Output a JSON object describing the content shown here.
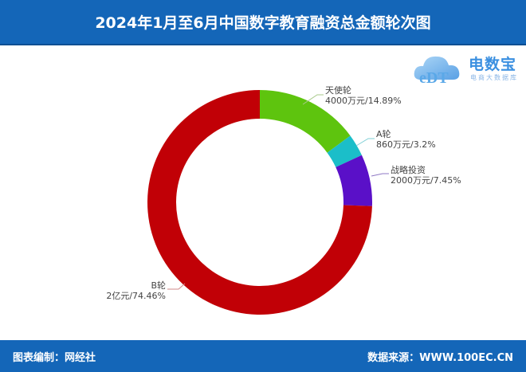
{
  "header": {
    "title": "2024年1月至6月中国数字教育融资总金额轮次图"
  },
  "logo": {
    "brand": "电数宝",
    "subtitle": "电商大数据库",
    "mark": "eDT"
  },
  "footer": {
    "left": "图表编制：网经社",
    "right": "数据来源：WWW.100EC.CN"
  },
  "colors": {
    "header_bg": "#1466b8",
    "angel": "#5ec40e",
    "a_round": "#1bbec9",
    "strategic": "#5a10c8",
    "b_round": "#c10006"
  },
  "labels": [
    {
      "name": "天使轮",
      "value_text": "4000万元/14.89%"
    },
    {
      "name": "A轮",
      "value_text": "860万元/3.2%"
    },
    {
      "name": "战略投资",
      "value_text": "2000万元/7.45%"
    },
    {
      "name": "B轮",
      "value_text": "2亿元/74.46%"
    }
  ],
  "chart_data": {
    "type": "pie",
    "variant": "donut",
    "title": "2024年1月至6月中国数字教育融资总金额轮次图",
    "categories": [
      "天使轮",
      "A轮",
      "战略投资",
      "B轮"
    ],
    "values": [
      4000,
      860,
      2000,
      20000
    ],
    "unit": "万元",
    "percentages": [
      14.89,
      3.2,
      7.45,
      74.46
    ],
    "colors": [
      "#5ec40e",
      "#1bbec9",
      "#5a10c8",
      "#c10006"
    ],
    "start_angle": "12 o'clock, clockwise",
    "legend": "none (inline labels)"
  }
}
